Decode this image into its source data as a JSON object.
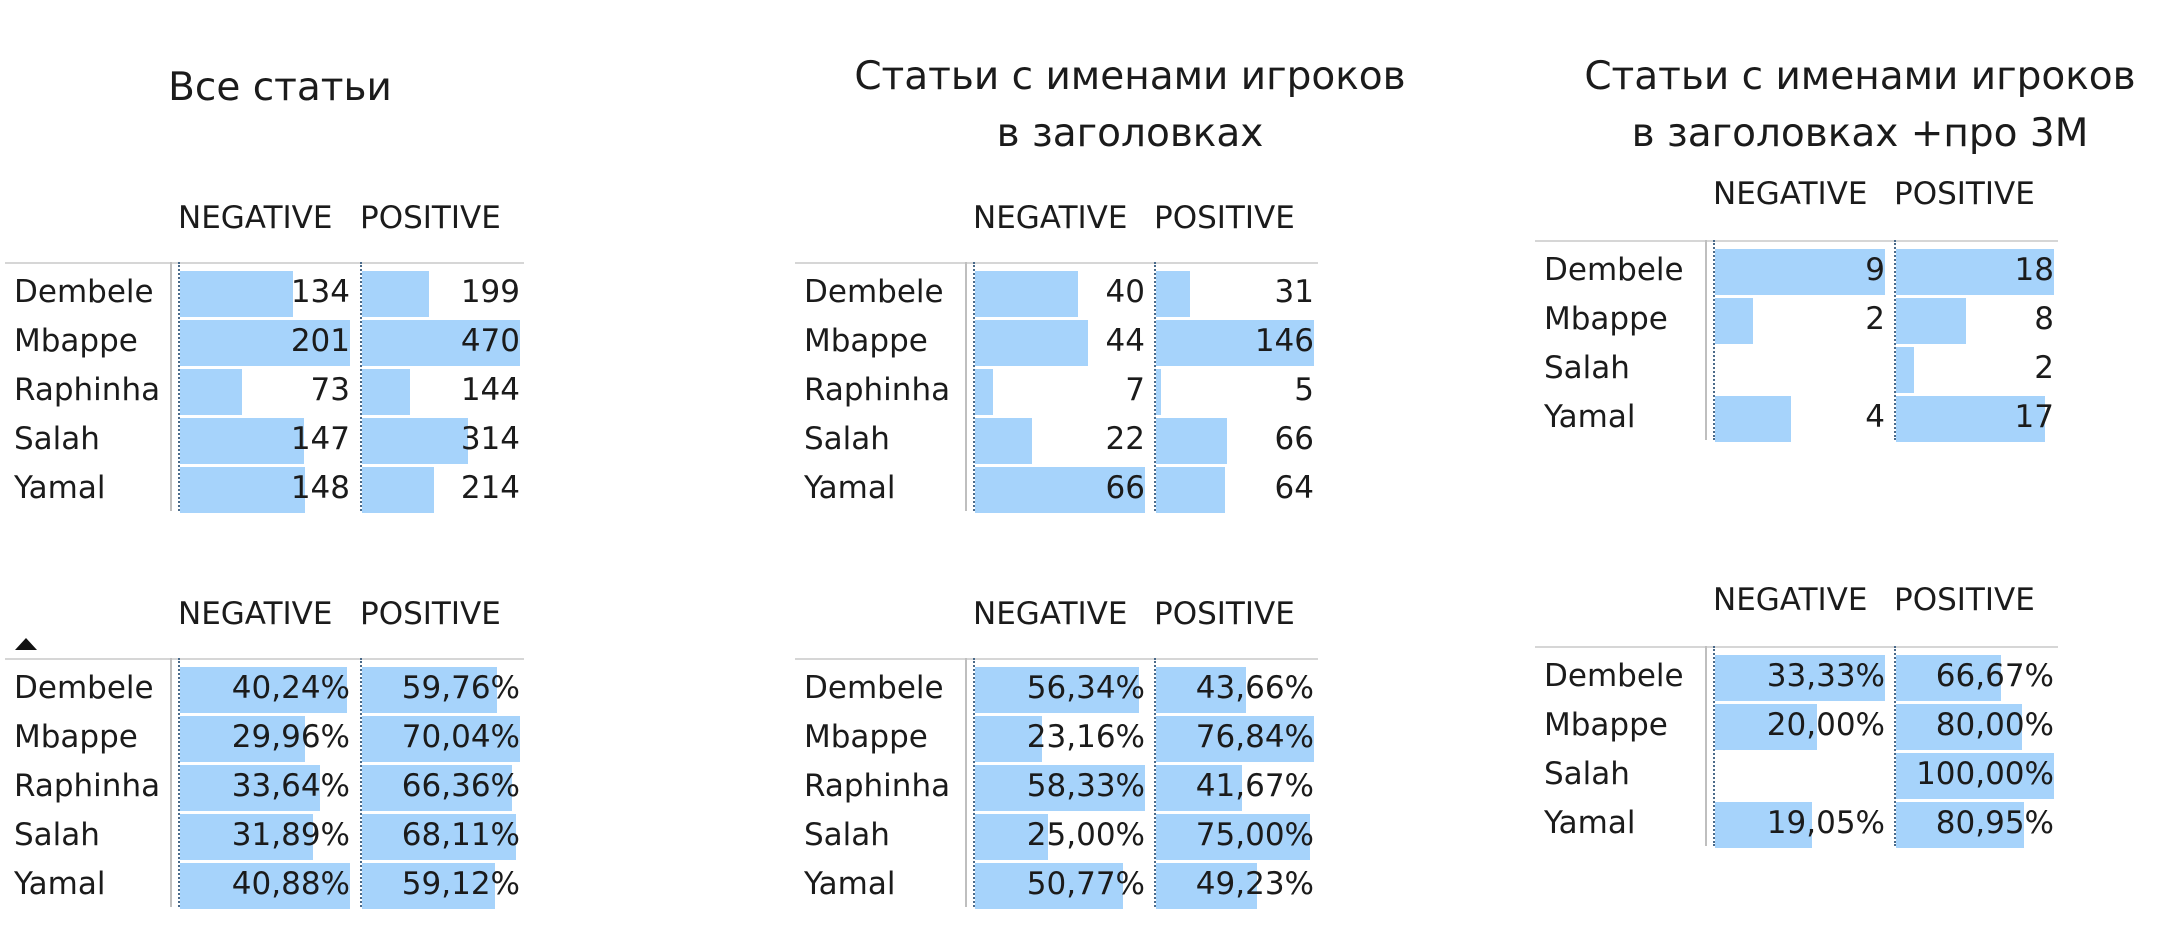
{
  "titles": {
    "all": "Все статьи",
    "names": [
      "Статьи с именами игроков",
      "в заголовках"
    ],
    "names3m": [
      "Статьи с именами игроков",
      "в заголовках +про 3М"
    ]
  },
  "colors": {
    "bar": "#a6d3fb",
    "text": "#1b1b1b",
    "sort_icon": "#111111"
  },
  "icons": {
    "sort": "sort-ascending-icon"
  },
  "chart_data": [
    {
      "type": "table",
      "group": "all",
      "format": "count",
      "columns": [
        "NEGATIVE",
        "POSITIVE"
      ],
      "rows": [
        "Dembele",
        "Mbappe",
        "Raphinha",
        "Salah",
        "Yamal"
      ],
      "labels": {
        "NEGATIVE": [
          "134",
          "201",
          "73",
          "147",
          "148"
        ],
        "POSITIVE": [
          "199",
          "470",
          "144",
          "314",
          "214"
        ]
      },
      "series": [
        {
          "name": "NEGATIVE",
          "values": [
            134,
            201,
            73,
            147,
            148
          ]
        },
        {
          "name": "POSITIVE",
          "values": [
            199,
            470,
            144,
            314,
            214
          ]
        }
      ]
    },
    {
      "type": "table",
      "group": "names",
      "format": "count",
      "columns": [
        "NEGATIVE",
        "POSITIVE"
      ],
      "rows": [
        "Dembele",
        "Mbappe",
        "Raphinha",
        "Salah",
        "Yamal"
      ],
      "labels": {
        "NEGATIVE": [
          "40",
          "44",
          "7",
          "22",
          "66"
        ],
        "POSITIVE": [
          "31",
          "146",
          "5",
          "66",
          "64"
        ]
      },
      "series": [
        {
          "name": "NEGATIVE",
          "values": [
            40,
            44,
            7,
            22,
            66
          ]
        },
        {
          "name": "POSITIVE",
          "values": [
            31,
            146,
            5,
            66,
            64
          ]
        }
      ]
    },
    {
      "type": "table",
      "group": "names3m",
      "format": "count",
      "columns": [
        "NEGATIVE",
        "POSITIVE"
      ],
      "rows": [
        "Dembele",
        "Mbappe",
        "Salah",
        "Yamal"
      ],
      "labels": {
        "NEGATIVE": [
          "9",
          "2",
          "",
          "4"
        ],
        "POSITIVE": [
          "18",
          "8",
          "2",
          "17"
        ]
      },
      "series": [
        {
          "name": "NEGATIVE",
          "values": [
            9,
            2,
            null,
            4
          ]
        },
        {
          "name": "POSITIVE",
          "values": [
            18,
            8,
            2,
            17
          ]
        }
      ]
    },
    {
      "type": "table",
      "group": "all",
      "format": "percent",
      "sorted_ascending": true,
      "columns": [
        "NEGATIVE",
        "POSITIVE"
      ],
      "rows": [
        "Dembele",
        "Mbappe",
        "Raphinha",
        "Salah",
        "Yamal"
      ],
      "labels": {
        "NEGATIVE": [
          "40,24%",
          "29,96%",
          "33,64%",
          "31,89%",
          "40,88%"
        ],
        "POSITIVE": [
          "59,76%",
          "70,04%",
          "66,36%",
          "68,11%",
          "59,12%"
        ]
      },
      "series": [
        {
          "name": "NEGATIVE",
          "values": [
            40.24,
            29.96,
            33.64,
            31.89,
            40.88
          ]
        },
        {
          "name": "POSITIVE",
          "values": [
            59.76,
            70.04,
            66.36,
            68.11,
            59.12
          ]
        }
      ]
    },
    {
      "type": "table",
      "group": "names",
      "format": "percent",
      "columns": [
        "NEGATIVE",
        "POSITIVE"
      ],
      "rows": [
        "Dembele",
        "Mbappe",
        "Raphinha",
        "Salah",
        "Yamal"
      ],
      "labels": {
        "NEGATIVE": [
          "56,34%",
          "23,16%",
          "58,33%",
          "25,00%",
          "50,77%"
        ],
        "POSITIVE": [
          "43,66%",
          "76,84%",
          "41,67%",
          "75,00%",
          "49,23%"
        ]
      },
      "series": [
        {
          "name": "NEGATIVE",
          "values": [
            56.34,
            23.16,
            58.33,
            25.0,
            50.77
          ]
        },
        {
          "name": "POSITIVE",
          "values": [
            43.66,
            76.84,
            41.67,
            75.0,
            49.23
          ]
        }
      ]
    },
    {
      "type": "table",
      "group": "names3m",
      "format": "percent",
      "columns": [
        "NEGATIVE",
        "POSITIVE"
      ],
      "rows": [
        "Dembele",
        "Mbappe",
        "Salah",
        "Yamal"
      ],
      "labels": {
        "NEGATIVE": [
          "33,33%",
          "20,00%",
          "",
          "19,05%"
        ],
        "POSITIVE": [
          "66,67%",
          "80,00%",
          "100,00%",
          "80,95%"
        ]
      },
      "series": [
        {
          "name": "NEGATIVE",
          "values": [
            33.33,
            20.0,
            null,
            19.05
          ]
        },
        {
          "name": "POSITIVE",
          "values": [
            66.67,
            80.0,
            100.0,
            80.95
          ]
        }
      ]
    }
  ]
}
